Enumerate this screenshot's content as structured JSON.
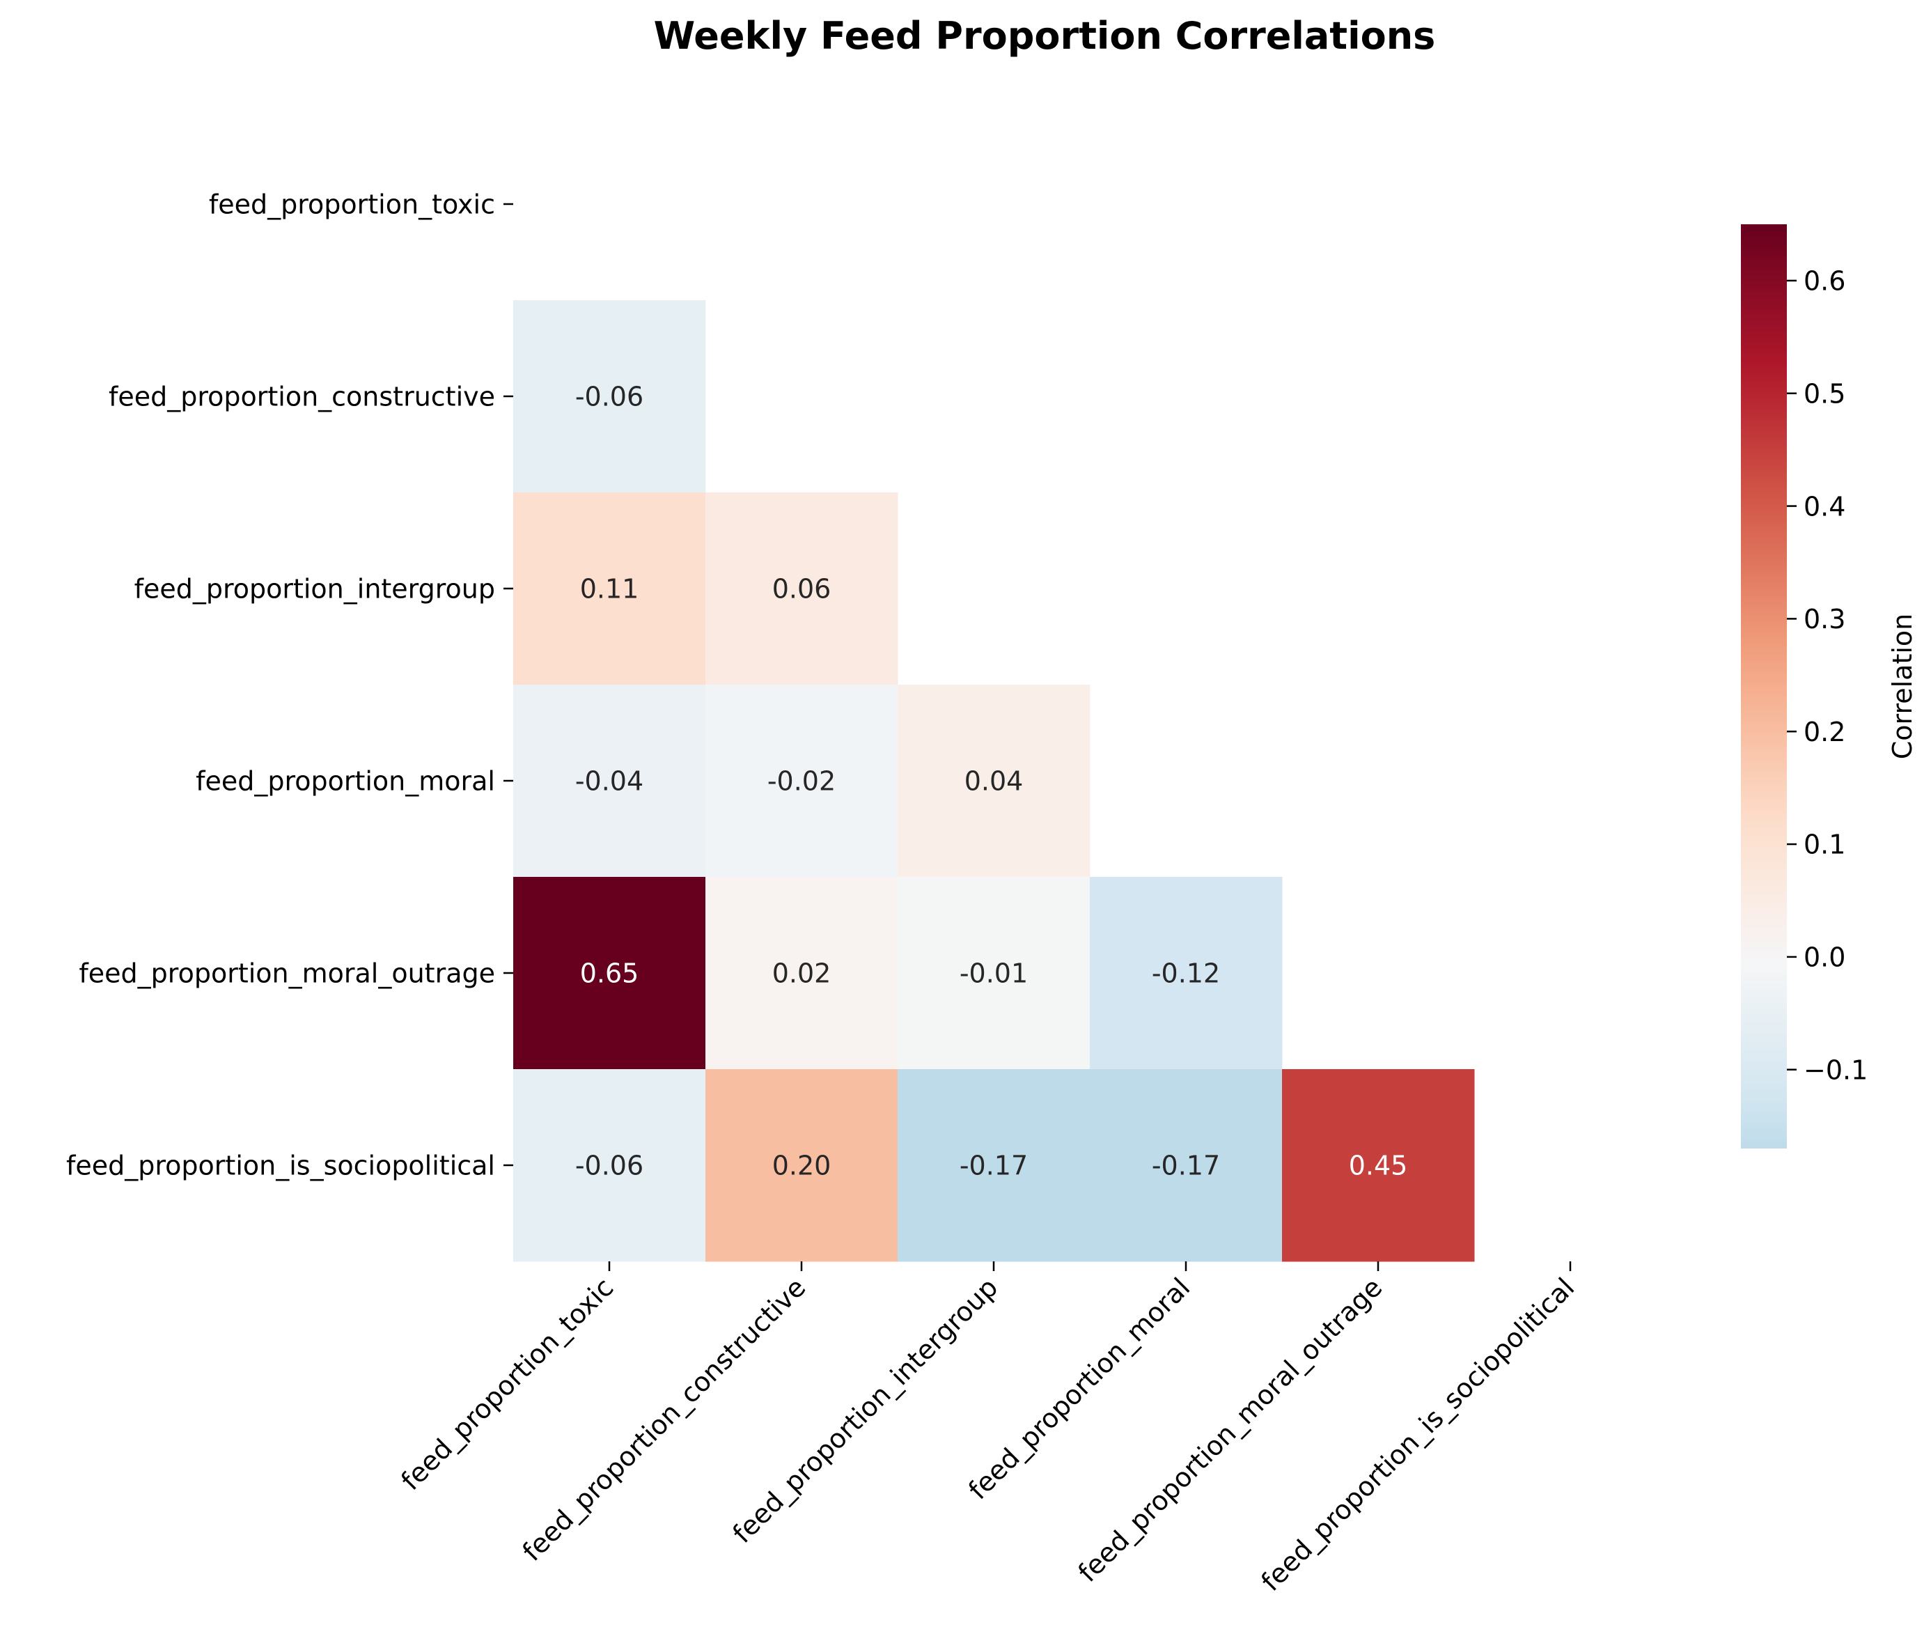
{
  "chart_data": {
    "type": "heatmap",
    "title": "Weekly Feed Proportion Correlations",
    "variables": [
      "feed_proportion_toxic",
      "feed_proportion_constructive",
      "feed_proportion_intergroup",
      "feed_proportion_moral",
      "feed_proportion_moral_outrage",
      "feed_proportion_is_sociopolitical"
    ],
    "mask": "upper-triangle-including-diagonal",
    "cells": [
      {
        "row": 1,
        "col": 0,
        "value": -0.06,
        "label": "-0.06"
      },
      {
        "row": 2,
        "col": 0,
        "value": 0.11,
        "label": "0.11"
      },
      {
        "row": 2,
        "col": 1,
        "value": 0.06,
        "label": "0.06"
      },
      {
        "row": 3,
        "col": 0,
        "value": -0.04,
        "label": "-0.04"
      },
      {
        "row": 3,
        "col": 1,
        "value": -0.02,
        "label": "-0.02"
      },
      {
        "row": 3,
        "col": 2,
        "value": 0.04,
        "label": "0.04"
      },
      {
        "row": 4,
        "col": 0,
        "value": 0.65,
        "label": "0.65"
      },
      {
        "row": 4,
        "col": 1,
        "value": 0.02,
        "label": "0.02"
      },
      {
        "row": 4,
        "col": 2,
        "value": -0.01,
        "label": "-0.01"
      },
      {
        "row": 4,
        "col": 3,
        "value": -0.12,
        "label": "-0.12"
      },
      {
        "row": 5,
        "col": 0,
        "value": -0.06,
        "label": "-0.06"
      },
      {
        "row": 5,
        "col": 1,
        "value": 0.2,
        "label": "0.20"
      },
      {
        "row": 5,
        "col": 2,
        "value": -0.17,
        "label": "-0.17"
      },
      {
        "row": 5,
        "col": 3,
        "value": -0.17,
        "label": "-0.17"
      },
      {
        "row": 5,
        "col": 4,
        "value": 0.45,
        "label": "0.45"
      }
    ],
    "colorbar": {
      "label": "Correlation",
      "colormap": "RdBu_r",
      "range": [
        -0.17,
        0.65
      ],
      "ticks": [
        -0.1,
        0.0,
        0.1,
        0.2,
        0.3,
        0.4,
        0.5,
        0.6
      ],
      "tick_labels": [
        "−0.1",
        "0.0",
        "0.1",
        "0.2",
        "0.3",
        "0.4",
        "0.5",
        "0.6"
      ]
    },
    "grid": false
  }
}
